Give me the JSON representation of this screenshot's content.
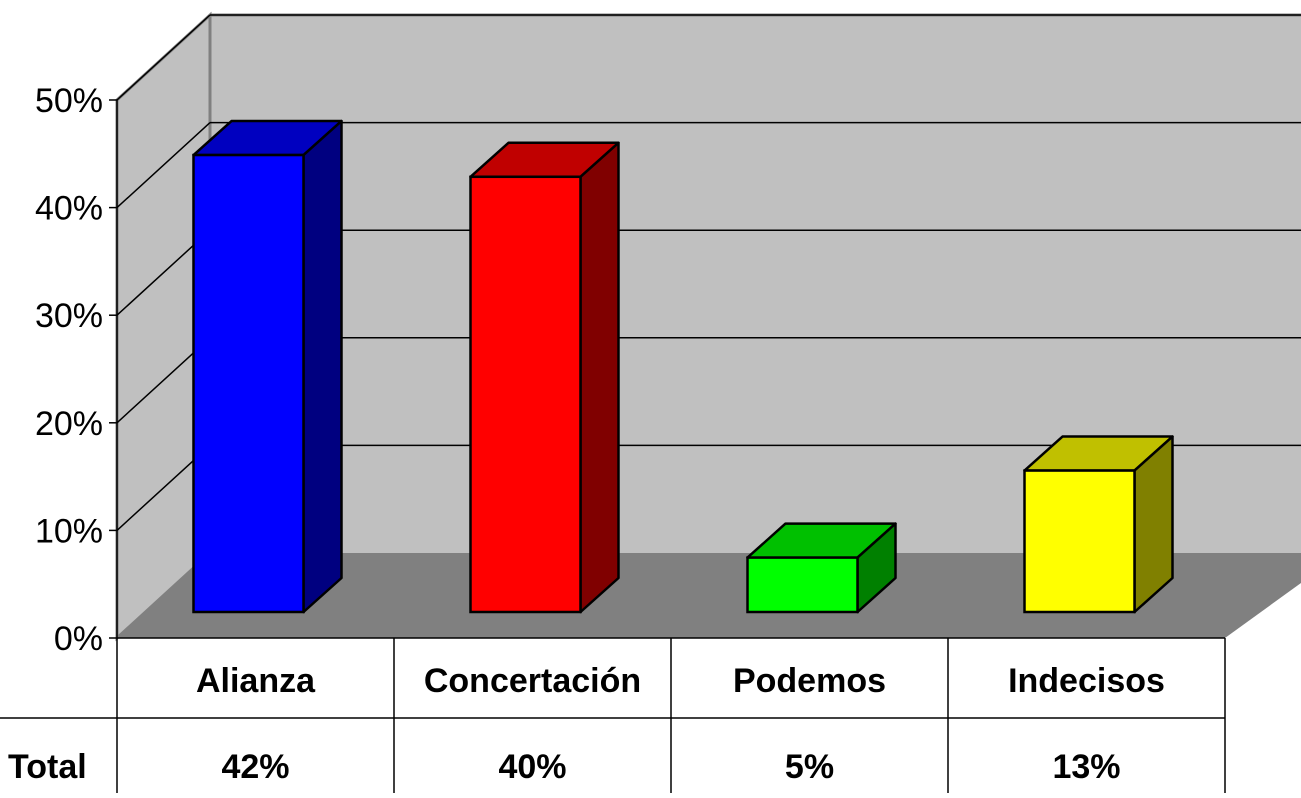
{
  "chart_data": {
    "type": "bar",
    "categories": [
      "Alianza",
      "Concertación",
      "Podemos",
      "Indecisos"
    ],
    "values": [
      42,
      40,
      5,
      13
    ],
    "value_labels": [
      "42%",
      "40%",
      "5%",
      "13%"
    ],
    "y_ticks": [
      "0%",
      "10%",
      "20%",
      "30%",
      "40%",
      "50%"
    ],
    "ylim": [
      0,
      50
    ],
    "grid": true,
    "legend": "none",
    "table_row_label": "Total",
    "colors": {
      "front": [
        "#0000ff",
        "#ff0000",
        "#00ff00",
        "#ffff00"
      ],
      "side": [
        "#000080",
        "#800000",
        "#008000",
        "#808000"
      ],
      "top": [
        "#0000c0",
        "#c00000",
        "#00c000",
        "#c0c000"
      ],
      "wall": "#c0c0c0",
      "floor": "#808080"
    }
  }
}
